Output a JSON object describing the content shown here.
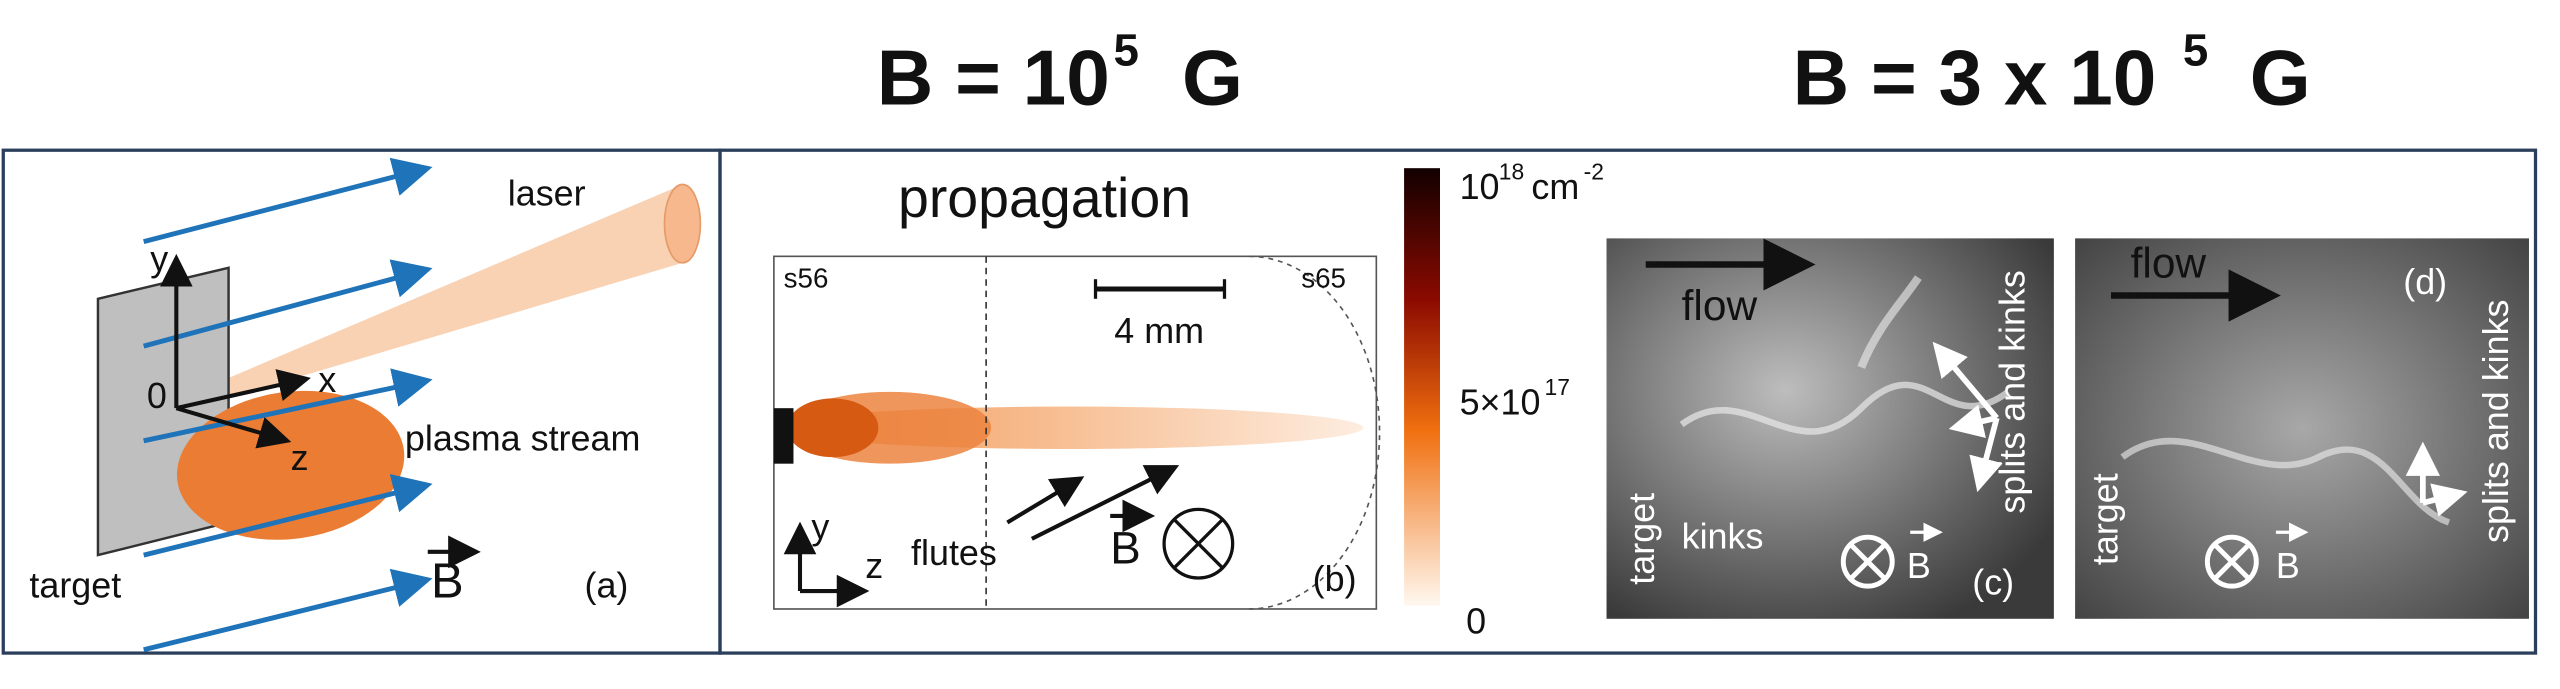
{
  "header": {
    "left": {
      "text": "B = 10",
      "exponent": "5",
      "unit": "G"
    },
    "right": {
      "text": "B = 3 x 10",
      "exponent": "5",
      "unit": "G"
    }
  },
  "panel_a": {
    "laser": "laser",
    "axis_y": "y",
    "axis_x": "x",
    "axis_z": "z",
    "origin": "0",
    "plasma": "plasma stream",
    "target": "target",
    "field": "B",
    "label": "(a)"
  },
  "panel_b": {
    "title": "propagation",
    "shot_left": "s56",
    "shot_right": "s65",
    "scale": "4 mm",
    "flutes": "flutes",
    "axis_y": "y",
    "axis_z": "z",
    "field": "B",
    "label": "(b)"
  },
  "colorbar": {
    "max": {
      "base": "10",
      "exponent": "18",
      "unit": "cm",
      "unit_exponent": "-2"
    },
    "mid": {
      "base": "5×10",
      "exponent": "17"
    },
    "min": "0"
  },
  "panel_c": {
    "flow": "flow",
    "splits": "splits and kinks",
    "target": "target",
    "kinks": "kinks",
    "field": "B",
    "label": "(c)"
  },
  "panel_d": {
    "flow": "flow",
    "label": "(d)",
    "splits": "splits and kinks",
    "target": "target",
    "field": "B"
  }
}
